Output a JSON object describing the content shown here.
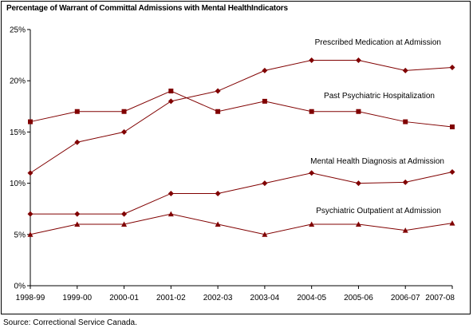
{
  "chart_data": {
    "type": "line",
    "title": "Percentage of Warrant of Committal Admissions with Mental HealthIndicators",
    "source": "Source:  Correctional Service Canada.",
    "categories": [
      "1998-99",
      "1999-00",
      "2000-01",
      "2001-02",
      "2002-03",
      "2003-04",
      "2004-05",
      "2005-06",
      "2006-07",
      "2007-08"
    ],
    "y_ticks": [
      "0%",
      "5%",
      "10%",
      "15%",
      "20%",
      "25%"
    ],
    "ylim": [
      0,
      25
    ],
    "grid": false,
    "line_color": "#800000",
    "series": [
      {
        "name": "Prescribed Medication at Admission",
        "marker": "diamond",
        "values": [
          11,
          14,
          15,
          18,
          19,
          21,
          22,
          22,
          21,
          21.3
        ]
      },
      {
        "name": "Past Psychiatric Hospitalization",
        "marker": "square",
        "values": [
          16,
          17,
          17,
          19,
          17,
          18,
          17,
          17,
          16,
          15.5
        ]
      },
      {
        "name": "Mental Health Diagnosis at Admission",
        "marker": "diamond",
        "values": [
          7,
          7,
          7,
          9,
          9,
          10,
          11,
          10,
          10.1,
          11.1
        ]
      },
      {
        "name": "Psychiatric Outpatient at Admission",
        "marker": "triangle",
        "values": [
          5,
          6,
          6,
          7,
          6,
          5,
          6,
          6,
          5.4,
          6.1
        ]
      }
    ]
  }
}
